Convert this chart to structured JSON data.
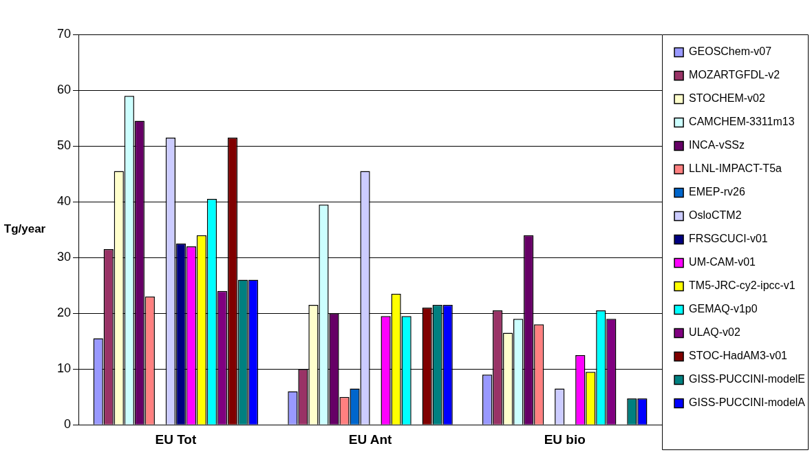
{
  "chart_data": {
    "type": "bar",
    "ylabel": "Tg/year",
    "categories": [
      "EU Tot",
      "EU Ant",
      "EU bio"
    ],
    "ylim": [
      0,
      70
    ],
    "yticks": [
      0,
      10,
      20,
      30,
      40,
      50,
      60,
      70
    ],
    "grid": "y",
    "legend": "right",
    "series": [
      {
        "name": "GEOSChem-v07",
        "color": "#9999ff",
        "values": [
          15.5,
          6,
          9
        ]
      },
      {
        "name": "MOZARTGFDL-v2",
        "color": "#993366",
        "values": [
          31.5,
          10,
          20.5
        ]
      },
      {
        "name": "STOCHEM-v02",
        "color": "#ffffcc",
        "values": [
          45.5,
          21.5,
          16.5
        ]
      },
      {
        "name": "CAMCHEM-3311m13",
        "color": "#ccffff",
        "values": [
          59,
          39.5,
          19
        ]
      },
      {
        "name": "INCA-vSSz",
        "color": "#660066",
        "values": [
          54.5,
          20,
          34
        ]
      },
      {
        "name": "LLNL-IMPACT-T5a",
        "color": "#ff8080",
        "values": [
          23,
          5,
          18
        ]
      },
      {
        "name": "EMEP-rv26",
        "color": "#0066cc",
        "values": [
          null,
          6.5,
          null
        ]
      },
      {
        "name": "OsloCTM2",
        "color": "#ccccff",
        "values": [
          51.5,
          45.5,
          6.5
        ]
      },
      {
        "name": "FRSGCUCI-v01",
        "color": "#000080",
        "values": [
          32.5,
          null,
          null
        ]
      },
      {
        "name": "UM-CAM-v01",
        "color": "#ff00ff",
        "values": [
          32,
          19.5,
          12.5
        ]
      },
      {
        "name": "TM5-JRC-cy2-ipcc-v1",
        "color": "#ffff00",
        "values": [
          34,
          23.5,
          9.5
        ]
      },
      {
        "name": "GEMAQ-v1p0",
        "color": "#00ffff",
        "values": [
          40.5,
          19.5,
          20.5
        ]
      },
      {
        "name": "ULAQ-v02",
        "color": "#800080",
        "values": [
          24,
          null,
          19
        ]
      },
      {
        "name": "STOC-HadAM3-v01",
        "color": "#800000",
        "values": [
          51.5,
          21,
          null
        ]
      },
      {
        "name": "GISS-PUCCINI-modelE",
        "color": "#008080",
        "values": [
          26,
          21.5,
          4.7
        ]
      },
      {
        "name": "GISS-PUCCINI-modelA",
        "color": "#0000ff",
        "values": [
          26,
          21.5,
          4.7
        ]
      }
    ]
  }
}
